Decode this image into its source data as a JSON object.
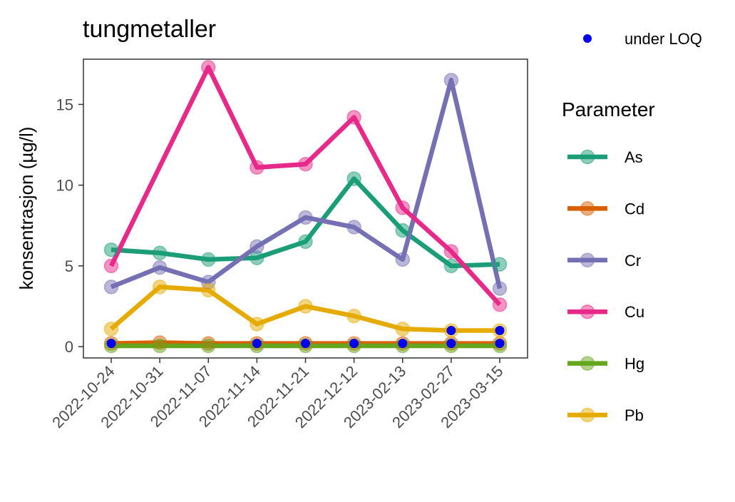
{
  "chart_data": {
    "type": "line",
    "title": "tungmetaller",
    "xlabel": "",
    "ylabel": "konsentrasjon (µg/l)",
    "categories": [
      "2022-10-24",
      "2022-10-31",
      "2022-11-07",
      "2022-11-14",
      "2022-11-21",
      "2022-12-12",
      "2023-02-13",
      "2023-02-27",
      "2023-03-15"
    ],
    "ylim": [
      -0.7,
      17.8
    ],
    "yticks": [
      0,
      5,
      10,
      15
    ],
    "grid": false,
    "legend": {
      "title": "Parameter",
      "placement": "right",
      "loq_label": "under LOQ",
      "loq_color": "#0000ee"
    },
    "series": [
      {
        "name": "As",
        "color": "#1b9e77",
        "values": [
          6.0,
          5.8,
          5.4,
          5.5,
          6.5,
          10.4,
          7.2,
          5.0,
          5.1
        ]
      },
      {
        "name": "Cd",
        "color": "#d95f02",
        "values": [
          0.2,
          0.25,
          0.2,
          0.2,
          0.2,
          0.2,
          0.2,
          0.2,
          0.2
        ]
      },
      {
        "name": "Cr",
        "color": "#7570b3",
        "values": [
          3.7,
          4.9,
          4.0,
          6.2,
          8.0,
          7.4,
          5.4,
          16.5,
          3.6
        ]
      },
      {
        "name": "Cu",
        "color": "#e7298a",
        "values": [
          5.0,
          null,
          17.3,
          11.1,
          11.3,
          14.2,
          8.6,
          5.9,
          2.6
        ]
      },
      {
        "name": "Hg",
        "color": "#66a61e",
        "values": [
          0.05,
          0.05,
          0.05,
          0.05,
          0.05,
          0.05,
          0.05,
          0.05,
          0.05
        ]
      },
      {
        "name": "Pb",
        "color": "#e6ab02",
        "values": [
          1.1,
          3.7,
          3.5,
          1.4,
          2.5,
          1.9,
          1.1,
          1.0,
          1.0
        ]
      }
    ],
    "below_loq_points": [
      {
        "x": "2022-10-24",
        "y": 0.2
      },
      {
        "x": "2022-11-14",
        "y": 0.2
      },
      {
        "x": "2022-11-21",
        "y": 0.2
      },
      {
        "x": "2022-12-12",
        "y": 0.2
      },
      {
        "x": "2023-02-13",
        "y": 0.2
      },
      {
        "x": "2023-02-27",
        "y": 0.2
      },
      {
        "x": "2023-03-15",
        "y": 0.2
      },
      {
        "x": "2023-02-27",
        "y": 1.0
      },
      {
        "x": "2023-03-15",
        "y": 1.0
      }
    ]
  }
}
